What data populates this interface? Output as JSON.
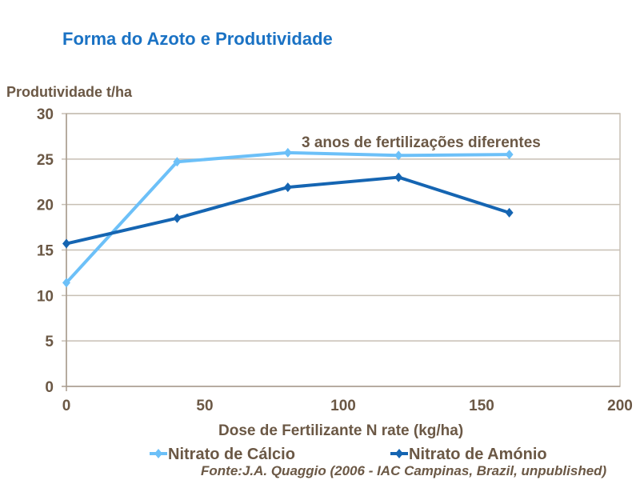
{
  "title": "Forma do Azoto e Produtividade",
  "source": "Fonte:J.A. Quaggio (2006 - IAC Campinas, Brazil, unpublished)",
  "chart_data": {
    "type": "line",
    "ylabel": "Produtividade t/ha",
    "xlabel": "Dose de Fertilizante N rate (kg/ha)",
    "annotation": "3 anos de fertilizações diferentes",
    "xlim": [
      0,
      200
    ],
    "ylim": [
      0,
      30
    ],
    "xticks": [
      0,
      50,
      100,
      150,
      200
    ],
    "yticks": [
      0,
      5,
      10,
      15,
      20,
      25,
      30
    ],
    "grid": "horizontal",
    "legend": "bottom",
    "x": [
      0,
      40,
      80,
      120,
      160
    ],
    "series": [
      {
        "name": "Nitrato de Cálcio",
        "color": "#6cc0f8",
        "values": [
          11.4,
          24.7,
          25.7,
          25.4,
          25.5
        ]
      },
      {
        "name": "Nitrato de Amónio",
        "color": "#1565b2",
        "values": [
          15.7,
          18.5,
          21.9,
          23.0,
          19.1
        ]
      }
    ]
  }
}
